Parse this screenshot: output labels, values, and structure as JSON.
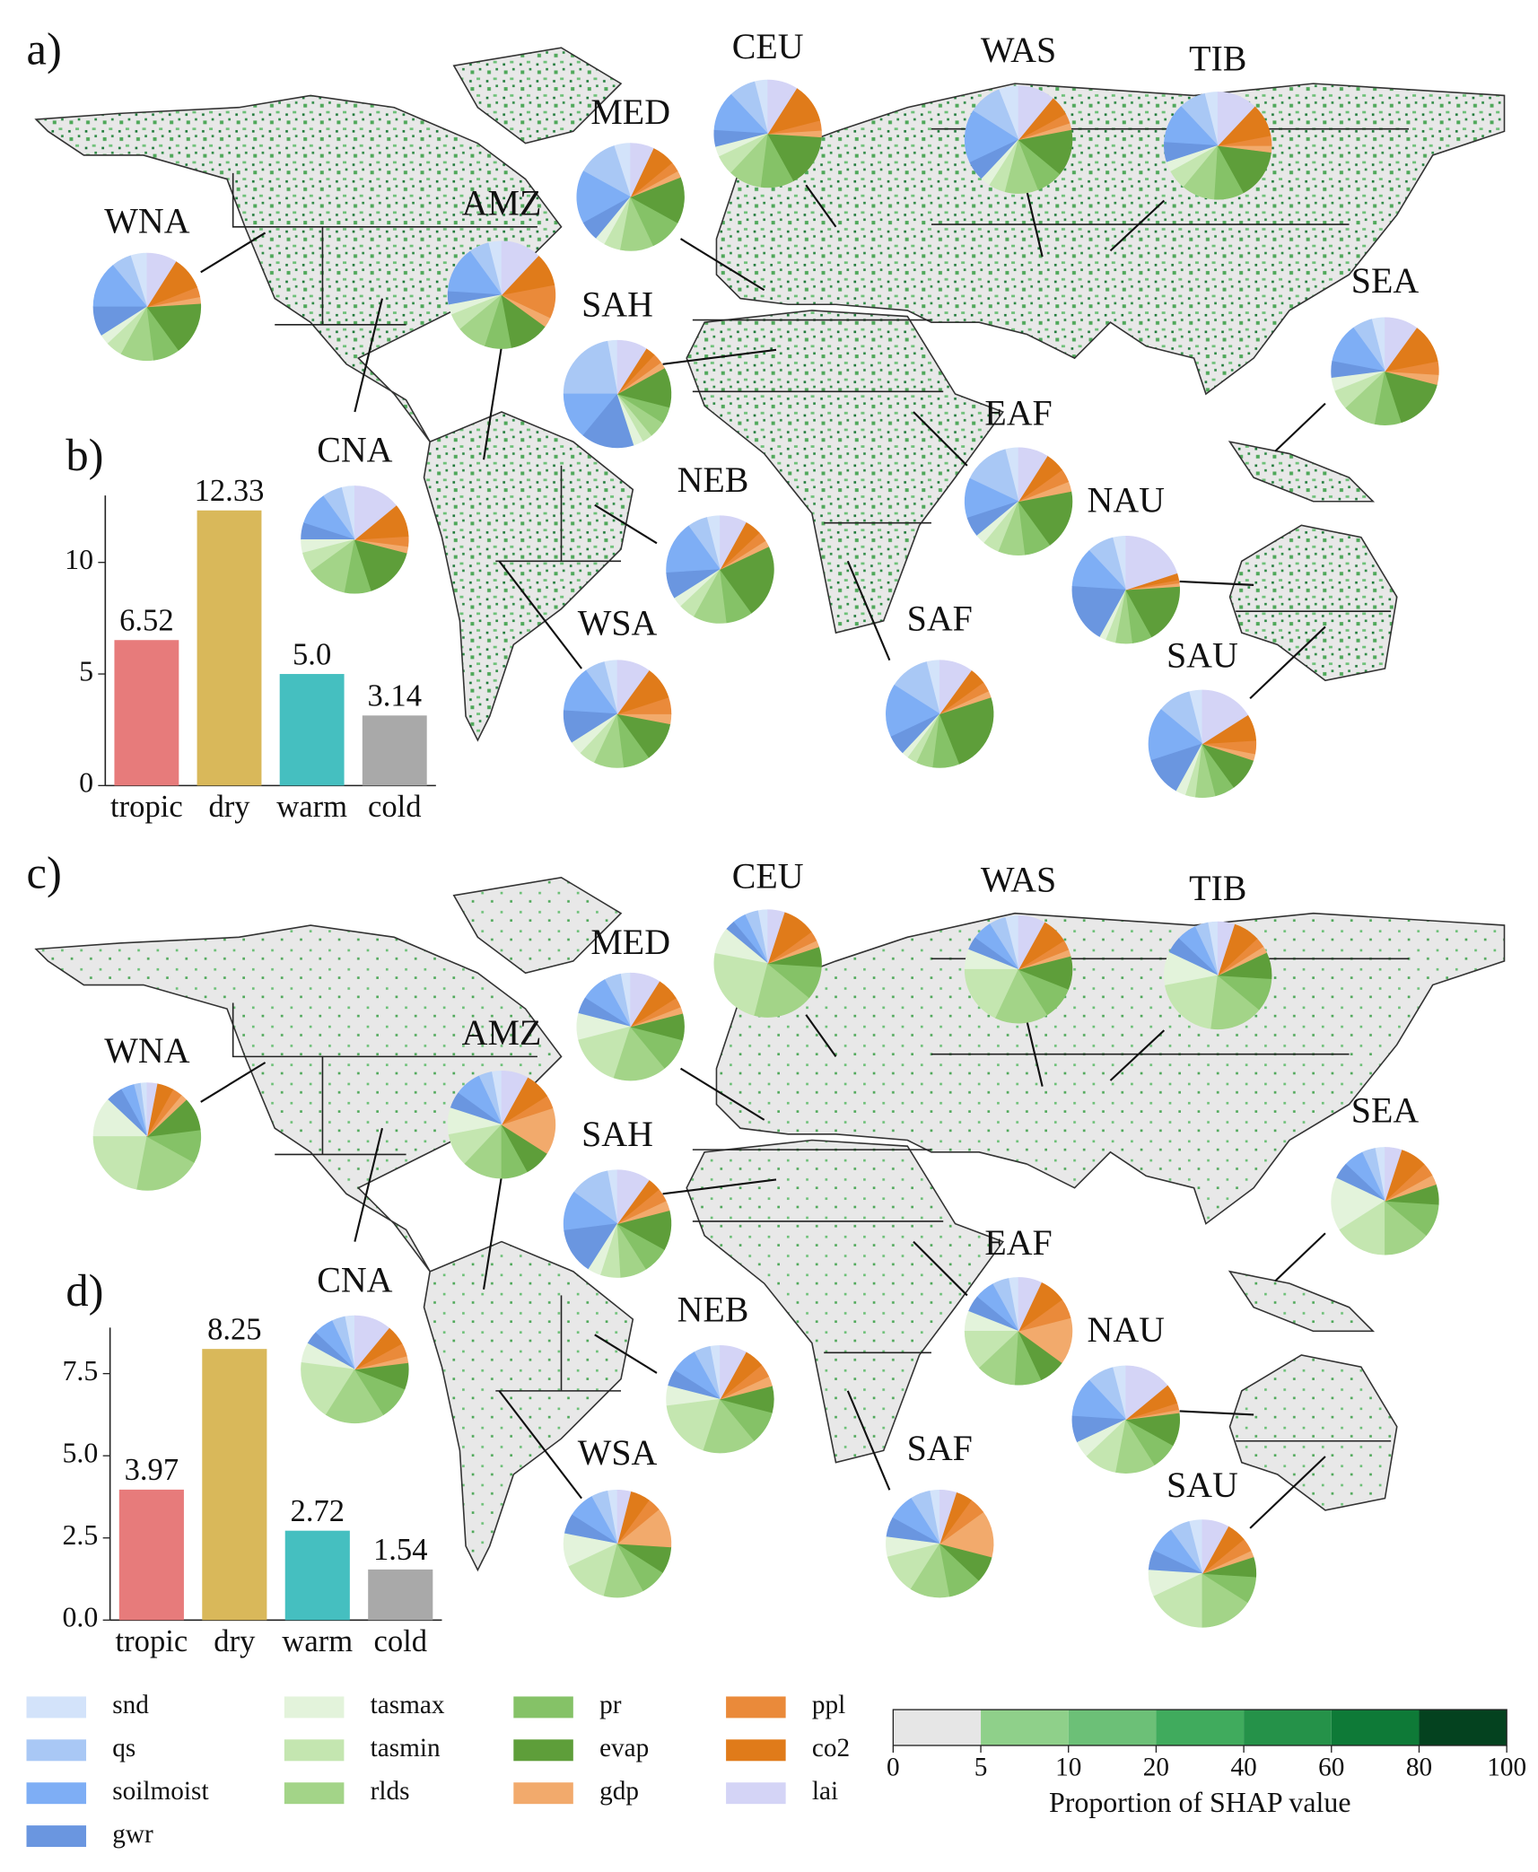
{
  "chart_data": [
    {
      "type": "pie-map",
      "label": "a)",
      "regions": [
        {
          "name": "WNA",
          "values": [
            5,
            6,
            14,
            9,
            3,
            5,
            10,
            8,
            16,
            2,
            3,
            10,
            9
          ]
        },
        {
          "name": "CNA",
          "values": [
            4,
            6,
            10,
            5,
            4,
            6,
            12,
            8,
            16,
            2,
            3,
            10,
            14
          ]
        },
        {
          "name": "AMZ",
          "values": [
            4,
            6,
            14,
            4,
            3,
            5,
            9,
            8,
            12,
            3,
            10,
            10,
            12
          ]
        },
        {
          "name": "MED",
          "values": [
            5,
            12,
            16,
            6,
            3,
            5,
            10,
            10,
            14,
            2,
            3,
            7,
            7
          ]
        },
        {
          "name": "CEU",
          "values": [
            4,
            8,
            12,
            5,
            3,
            6,
            10,
            10,
            16,
            2,
            3,
            12,
            9
          ]
        },
        {
          "name": "WAS",
          "values": [
            6,
            10,
            16,
            6,
            3,
            5,
            10,
            8,
            14,
            2,
            3,
            6,
            11
          ]
        },
        {
          "name": "TIB",
          "values": [
            4,
            8,
            12,
            6,
            3,
            6,
            10,
            9,
            15,
            2,
            3,
            10,
            12
          ]
        },
        {
          "name": "SAH",
          "values": [
            3,
            22,
            14,
            16,
            3,
            3,
            5,
            5,
            12,
            2,
            3,
            3,
            9
          ]
        },
        {
          "name": "EAF",
          "values": [
            4,
            14,
            12,
            6,
            3,
            5,
            8,
            8,
            18,
            3,
            4,
            6,
            9
          ]
        },
        {
          "name": "NEB",
          "values": [
            4,
            6,
            16,
            8,
            3,
            5,
            10,
            8,
            22,
            2,
            3,
            5,
            8
          ]
        },
        {
          "name": "SEA",
          "values": [
            4,
            6,
            12,
            5,
            4,
            6,
            10,
            8,
            16,
            3,
            4,
            12,
            10
          ]
        },
        {
          "name": "NAU",
          "values": [
            4,
            8,
            12,
            18,
            2,
            3,
            5,
            6,
            18,
            1,
            1,
            2,
            20
          ]
        },
        {
          "name": "WSA",
          "values": [
            4,
            6,
            14,
            10,
            4,
            5,
            9,
            8,
            12,
            3,
            5,
            10,
            10
          ]
        },
        {
          "name": "SAF",
          "values": [
            4,
            12,
            16,
            6,
            2,
            3,
            5,
            8,
            24,
            2,
            3,
            5,
            10
          ]
        },
        {
          "name": "SAU",
          "values": [
            4,
            10,
            16,
            12,
            3,
            3,
            6,
            6,
            10,
            2,
            4,
            8,
            16
          ]
        }
      ]
    },
    {
      "type": "bar",
      "label": "b)",
      "categories": [
        "tropic",
        "dry",
        "warm",
        "cold"
      ],
      "values": [
        6.52,
        12.33,
        5.0,
        3.14
      ],
      "value_labels": [
        "6.52",
        "12.33",
        "5.0",
        "3.14"
      ],
      "colors": [
        "#e77b7b",
        "#d9b85a",
        "#45bfc0",
        "#a9a9a9"
      ],
      "ylim": [
        0,
        13
      ],
      "yticks": [
        0,
        5,
        10
      ]
    },
    {
      "type": "pie-map",
      "label": "c)",
      "regions": [
        {
          "name": "WNA",
          "values": [
            2,
            2,
            4,
            5,
            12,
            22,
            20,
            10,
            10,
            2,
            3,
            5,
            3
          ]
        },
        {
          "name": "CNA",
          "values": [
            3,
            4,
            6,
            4,
            6,
            18,
            18,
            10,
            8,
            2,
            4,
            6,
            11
          ]
        },
        {
          "name": "AMZ",
          "values": [
            3,
            4,
            8,
            5,
            8,
            10,
            12,
            8,
            8,
            14,
            4,
            8,
            8
          ]
        },
        {
          "name": "MED",
          "values": [
            3,
            5,
            8,
            5,
            8,
            16,
            16,
            10,
            8,
            2,
            3,
            7,
            9
          ]
        },
        {
          "name": "CEU",
          "values": [
            3,
            4,
            4,
            3,
            8,
            24,
            18,
            10,
            6,
            2,
            3,
            10,
            5
          ]
        },
        {
          "name": "WAS",
          "values": [
            4,
            5,
            6,
            4,
            6,
            18,
            16,
            10,
            10,
            2,
            3,
            8,
            8
          ]
        },
        {
          "name": "TIB",
          "values": [
            3,
            4,
            6,
            5,
            10,
            20,
            16,
            10,
            8,
            2,
            3,
            8,
            5
          ]
        },
        {
          "name": "SAH",
          "values": [
            3,
            12,
            12,
            14,
            4,
            6,
            8,
            8,
            12,
            3,
            4,
            4,
            10
          ]
        },
        {
          "name": "EAF",
          "values": [
            3,
            5,
            6,
            5,
            6,
            12,
            12,
            8,
            8,
            14,
            6,
            8,
            7
          ]
        },
        {
          "name": "NEB",
          "values": [
            3,
            5,
            8,
            5,
            6,
            18,
            16,
            10,
            8,
            3,
            4,
            6,
            8
          ]
        },
        {
          "name": "SEA",
          "values": [
            3,
            4,
            6,
            5,
            16,
            16,
            14,
            10,
            6,
            3,
            4,
            8,
            5
          ]
        },
        {
          "name": "NAU",
          "values": [
            4,
            8,
            12,
            8,
            5,
            10,
            12,
            8,
            10,
            1,
            2,
            6,
            14
          ]
        },
        {
          "name": "WSA",
          "values": [
            3,
            5,
            8,
            6,
            10,
            14,
            12,
            8,
            8,
            12,
            4,
            6,
            4
          ]
        },
        {
          "name": "SAF",
          "values": [
            3,
            6,
            8,
            6,
            6,
            12,
            12,
            10,
            8,
            14,
            5,
            5,
            5
          ]
        },
        {
          "name": "SAU",
          "values": [
            4,
            6,
            8,
            6,
            8,
            18,
            16,
            8,
            6,
            2,
            4,
            6,
            8
          ]
        }
      ]
    },
    {
      "type": "bar",
      "label": "d)",
      "categories": [
        "tropic",
        "dry",
        "warm",
        "cold"
      ],
      "values": [
        3.97,
        8.25,
        2.72,
        1.54
      ],
      "value_labels": [
        "3.97",
        "8.25",
        "2.72",
        "1.54"
      ],
      "colors": [
        "#e77b7b",
        "#d9b85a",
        "#45bfc0",
        "#a9a9a9"
      ],
      "ylim": [
        0,
        8.9
      ],
      "yticks": [
        {
          "value": 0,
          "label": "0.0"
        },
        2.5,
        {
          "value": 5,
          "label": "5.0"
        },
        7.5
      ]
    }
  ],
  "legend": [
    {
      "name": "snd",
      "color": "#d3e3fa"
    },
    {
      "name": "qs",
      "color": "#a9c8f5"
    },
    {
      "name": "soilmoist",
      "color": "#7eaef5"
    },
    {
      "name": "gwr",
      "color": "#6a96e0"
    },
    {
      "name": "tasmax",
      "color": "#e3f3db"
    },
    {
      "name": "tasmin",
      "color": "#c4e6b0"
    },
    {
      "name": "rlds",
      "color": "#a3d488"
    },
    {
      "name": "pr",
      "color": "#85c267"
    },
    {
      "name": "evap",
      "color": "#5e9e3a"
    },
    {
      "name": "gdp",
      "color": "#f2aa6c"
    },
    {
      "name": "ppl",
      "color": "#ea8a3a"
    },
    {
      "name": "co2",
      "color": "#e07b1a"
    },
    {
      "name": "lai",
      "color": "#d4d4f6"
    }
  ],
  "colorbar": {
    "title": "Proportion of SHAP value",
    "ticks": [
      0,
      5,
      10,
      20,
      40,
      60,
      80,
      100
    ],
    "colors": [
      "#e6e6e6",
      "#8fd08a",
      "#6cc077",
      "#40ab5d",
      "#259249",
      "#0e7a37",
      "#04421f"
    ]
  }
}
